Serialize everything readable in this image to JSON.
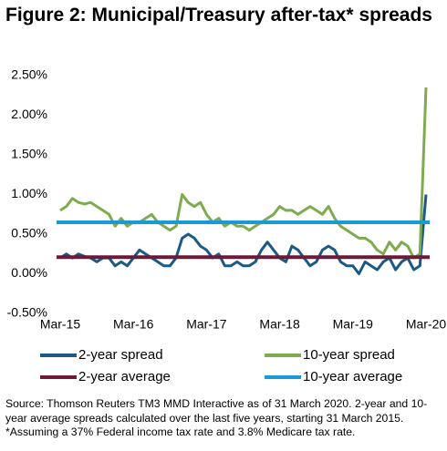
{
  "chart_data": {
    "type": "line",
    "title": "Figure 2: Municipal/Treasury after-tax* spreads",
    "categories": [
      "Mar-15",
      null,
      null,
      null,
      null,
      null,
      null,
      null,
      null,
      null,
      null,
      null,
      "Mar-16",
      null,
      null,
      null,
      null,
      null,
      null,
      null,
      null,
      null,
      null,
      null,
      "Mar-17",
      null,
      null,
      null,
      null,
      null,
      null,
      null,
      null,
      null,
      null,
      null,
      "Mar-18",
      null,
      null,
      null,
      null,
      null,
      null,
      null,
      null,
      null,
      null,
      null,
      "Mar-19",
      null,
      null,
      null,
      null,
      null,
      null,
      null,
      null,
      null,
      null,
      null,
      "Mar-20"
    ],
    "series": [
      {
        "name": "2-year spread",
        "color": "#1b5a85",
        "values": [
          0.2,
          0.25,
          0.2,
          0.25,
          0.22,
          0.2,
          0.15,
          0.2,
          0.2,
          0.1,
          0.15,
          0.1,
          0.2,
          0.3,
          0.25,
          0.2,
          0.15,
          0.1,
          0.1,
          0.2,
          0.45,
          0.5,
          0.45,
          0.35,
          0.3,
          0.2,
          0.25,
          0.1,
          0.1,
          0.15,
          0.1,
          0.1,
          0.15,
          0.3,
          0.4,
          0.3,
          0.2,
          0.15,
          0.35,
          0.3,
          0.2,
          0.1,
          0.15,
          0.3,
          0.35,
          0.3,
          0.15,
          0.1,
          0.1,
          0.0,
          0.15,
          0.1,
          0.05,
          0.15,
          0.2,
          0.05,
          0.15,
          0.2,
          0.05,
          0.1,
          1.0
        ]
      },
      {
        "name": "10-year spread",
        "color": "#7fab4f",
        "values": [
          0.8,
          0.85,
          0.95,
          0.9,
          0.88,
          0.9,
          0.85,
          0.8,
          0.75,
          0.6,
          0.7,
          0.6,
          0.65,
          0.65,
          0.7,
          0.75,
          0.65,
          0.6,
          0.55,
          0.6,
          1.0,
          0.9,
          0.85,
          0.9,
          0.75,
          0.65,
          0.7,
          0.6,
          0.65,
          0.6,
          0.6,
          0.55,
          0.6,
          0.65,
          0.7,
          0.75,
          0.85,
          0.8,
          0.8,
          0.75,
          0.8,
          0.85,
          0.8,
          0.75,
          0.85,
          0.7,
          0.6,
          0.55,
          0.5,
          0.45,
          0.45,
          0.4,
          0.3,
          0.25,
          0.4,
          0.3,
          0.4,
          0.35,
          0.2,
          0.25,
          2.35
        ]
      },
      {
        "name": "2-year average",
        "color": "#6b1a3a",
        "value": 0.21
      },
      {
        "name": "10-year average",
        "color": "#1a99d6",
        "value": 0.65
      }
    ],
    "ylim": [
      -0.5,
      2.5
    ],
    "yticks": [
      {
        "value": -0.5,
        "label": "-0.50%"
      },
      {
        "value": 0,
        "label": "0.00%"
      },
      {
        "value": 0.5,
        "label": "0.50%"
      },
      {
        "value": 1,
        "label": "1.00%"
      },
      {
        "value": 1.5,
        "label": "1.50%"
      },
      {
        "value": 2,
        "label": "2.00%"
      },
      {
        "value": 2.5,
        "label": "2.50%"
      }
    ],
    "grid": false,
    "notes": [
      "Source: Thomson Reuters TM3 MMD Interactive as of 31 March 2020. 2-year and 10-year average spreads calculated over the last five years, starting 31 March 2015.",
      "*Assuming a 37% Federal income tax rate and 3.8% Medicare tax rate."
    ]
  }
}
